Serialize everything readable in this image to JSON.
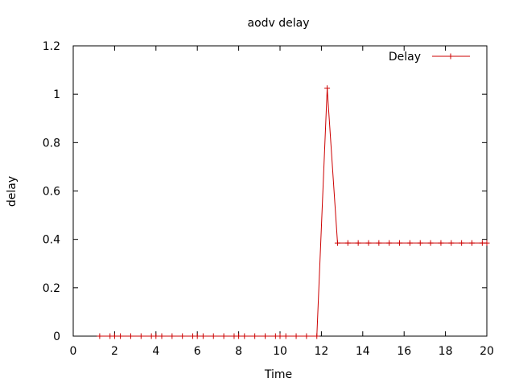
{
  "chart_data": {
    "type": "line",
    "title": "aodv delay",
    "xlabel": "Time",
    "ylabel": "delay",
    "xlim": [
      0,
      20
    ],
    "ylim": [
      0,
      1.2
    ],
    "xticks": [
      0,
      2,
      4,
      6,
      8,
      10,
      12,
      14,
      16,
      18,
      20
    ],
    "yticks": [
      0,
      0.2,
      0.4,
      0.6,
      0.8,
      1,
      1.2
    ],
    "xtick_labels": [
      "0",
      "2",
      "4",
      "6",
      "8",
      "10",
      "12",
      "14",
      "16",
      "18",
      "20"
    ],
    "ytick_labels": [
      "0",
      "0.2",
      "0.4",
      "0.6",
      "0.8",
      "1",
      "1.2"
    ],
    "grid": false,
    "legend_position": "top-right",
    "series": [
      {
        "name": "Delay",
        "color": "#cc0000",
        "marker": "plus",
        "x": [
          1.28,
          1.78,
          2.0,
          2.28,
          2.78,
          3.28,
          3.78,
          4.0,
          4.28,
          4.78,
          5.28,
          5.78,
          6.0,
          6.28,
          6.78,
          7.28,
          7.78,
          8.0,
          8.28,
          8.78,
          9.28,
          9.78,
          10.0,
          10.28,
          10.78,
          11.28,
          11.78,
          12.28,
          12.78,
          13.28,
          13.78,
          14.28,
          14.78,
          15.28,
          15.78,
          16.28,
          16.78,
          17.28,
          17.78,
          18.28,
          18.78,
          19.28,
          19.78,
          20.0
        ],
        "y": [
          0,
          0,
          0,
          0,
          0,
          0,
          0,
          0,
          0,
          0,
          0,
          0,
          0,
          0,
          0,
          0,
          0,
          0,
          0,
          0,
          0,
          0,
          0,
          0,
          0,
          0,
          0,
          1.025,
          0.385,
          0.385,
          0.385,
          0.385,
          0.385,
          0.385,
          0.385,
          0.385,
          0.385,
          0.385,
          0.385,
          0.385,
          0.385,
          0.385,
          0.385,
          0.385
        ]
      }
    ]
  }
}
